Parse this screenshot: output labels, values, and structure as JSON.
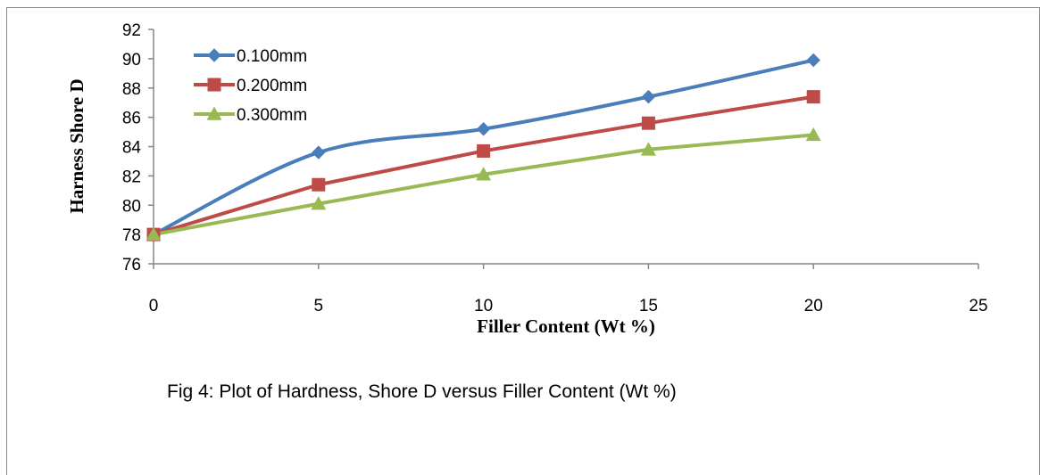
{
  "chart_data": {
    "type": "line",
    "title": "",
    "xlabel": "Filler Content (Wt %)",
    "ylabel": "Harness Shore D",
    "xlim": [
      0,
      25
    ],
    "ylim": [
      76,
      92
    ],
    "x_ticks": [
      "0",
      "5",
      "10",
      "15",
      "20",
      "25"
    ],
    "y_ticks": [
      "76",
      "78",
      "80",
      "82",
      "84",
      "86",
      "88",
      "90",
      "92"
    ],
    "x": [
      0,
      5,
      10,
      15,
      20
    ],
    "series": [
      {
        "name": "0.100mm",
        "values": [
          78.0,
          83.6,
          85.2,
          87.4,
          89.9
        ],
        "color": "#4a7ebb",
        "marker": "diamond",
        "smooth": true
      },
      {
        "name": "0.200mm",
        "values": [
          78.0,
          81.4,
          83.7,
          85.6,
          87.4
        ],
        "color": "#be4b48",
        "marker": "square",
        "smooth": false
      },
      {
        "name": "0.300mm",
        "values": [
          78.0,
          80.1,
          82.1,
          83.8,
          84.8
        ],
        "color": "#98b954",
        "marker": "triangle",
        "smooth": false
      }
    ],
    "grid": false,
    "legend_position": "top-left"
  },
  "caption": "Fig 4: Plot of Hardness, Shore D versus Filler Content (Wt %)"
}
